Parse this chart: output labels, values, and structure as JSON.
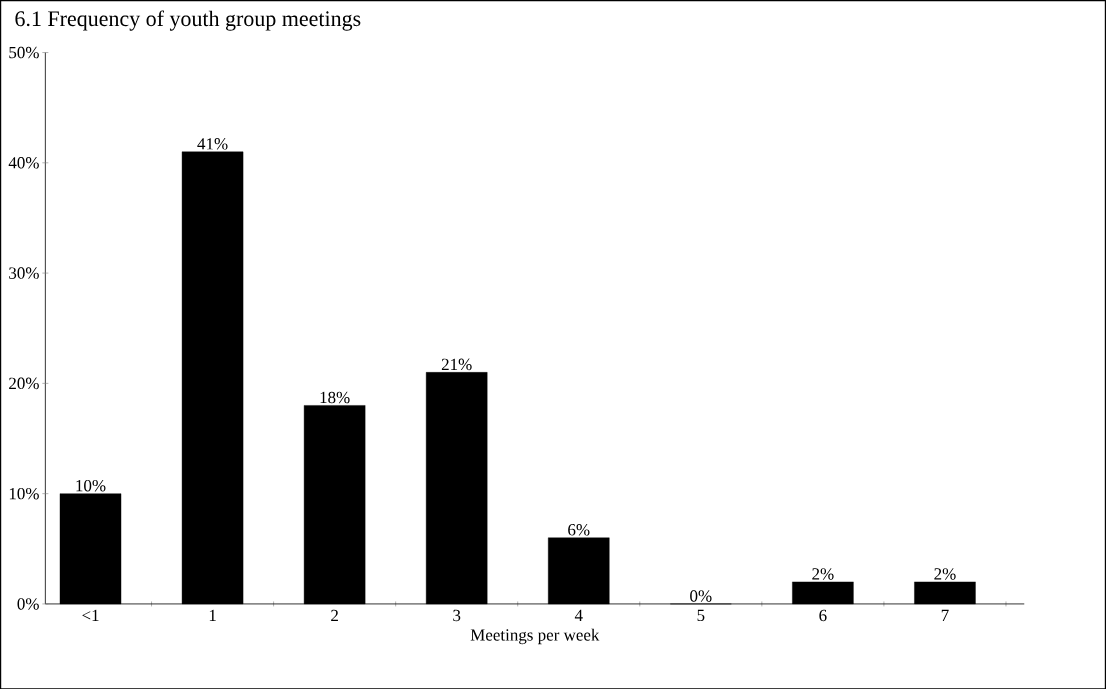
{
  "chart_data": {
    "type": "bar",
    "title": "6.1     Frequency of youth group meetings",
    "xlabel": "Meetings per week",
    "categories": [
      "<1",
      "1",
      "2",
      "3",
      "4",
      "5",
      "6",
      "7"
    ],
    "values": [
      10,
      41,
      18,
      21,
      6,
      0,
      2,
      2
    ],
    "value_labels": [
      "10%",
      "41%",
      "18%",
      "21%",
      "6%",
      "0%",
      "2%",
      "2%"
    ],
    "color": "#000000",
    "ylim": [
      0,
      50
    ],
    "yticks": [
      {
        "value": 0,
        "label": "0%"
      },
      {
        "value": 10,
        "label": "10%"
      },
      {
        "value": 20,
        "label": "20%"
      },
      {
        "value": 30,
        "label": "30%"
      },
      {
        "value": 40,
        "label": "40%"
      },
      {
        "value": 50,
        "label": "50%"
      }
    ],
    "grid": false
  }
}
